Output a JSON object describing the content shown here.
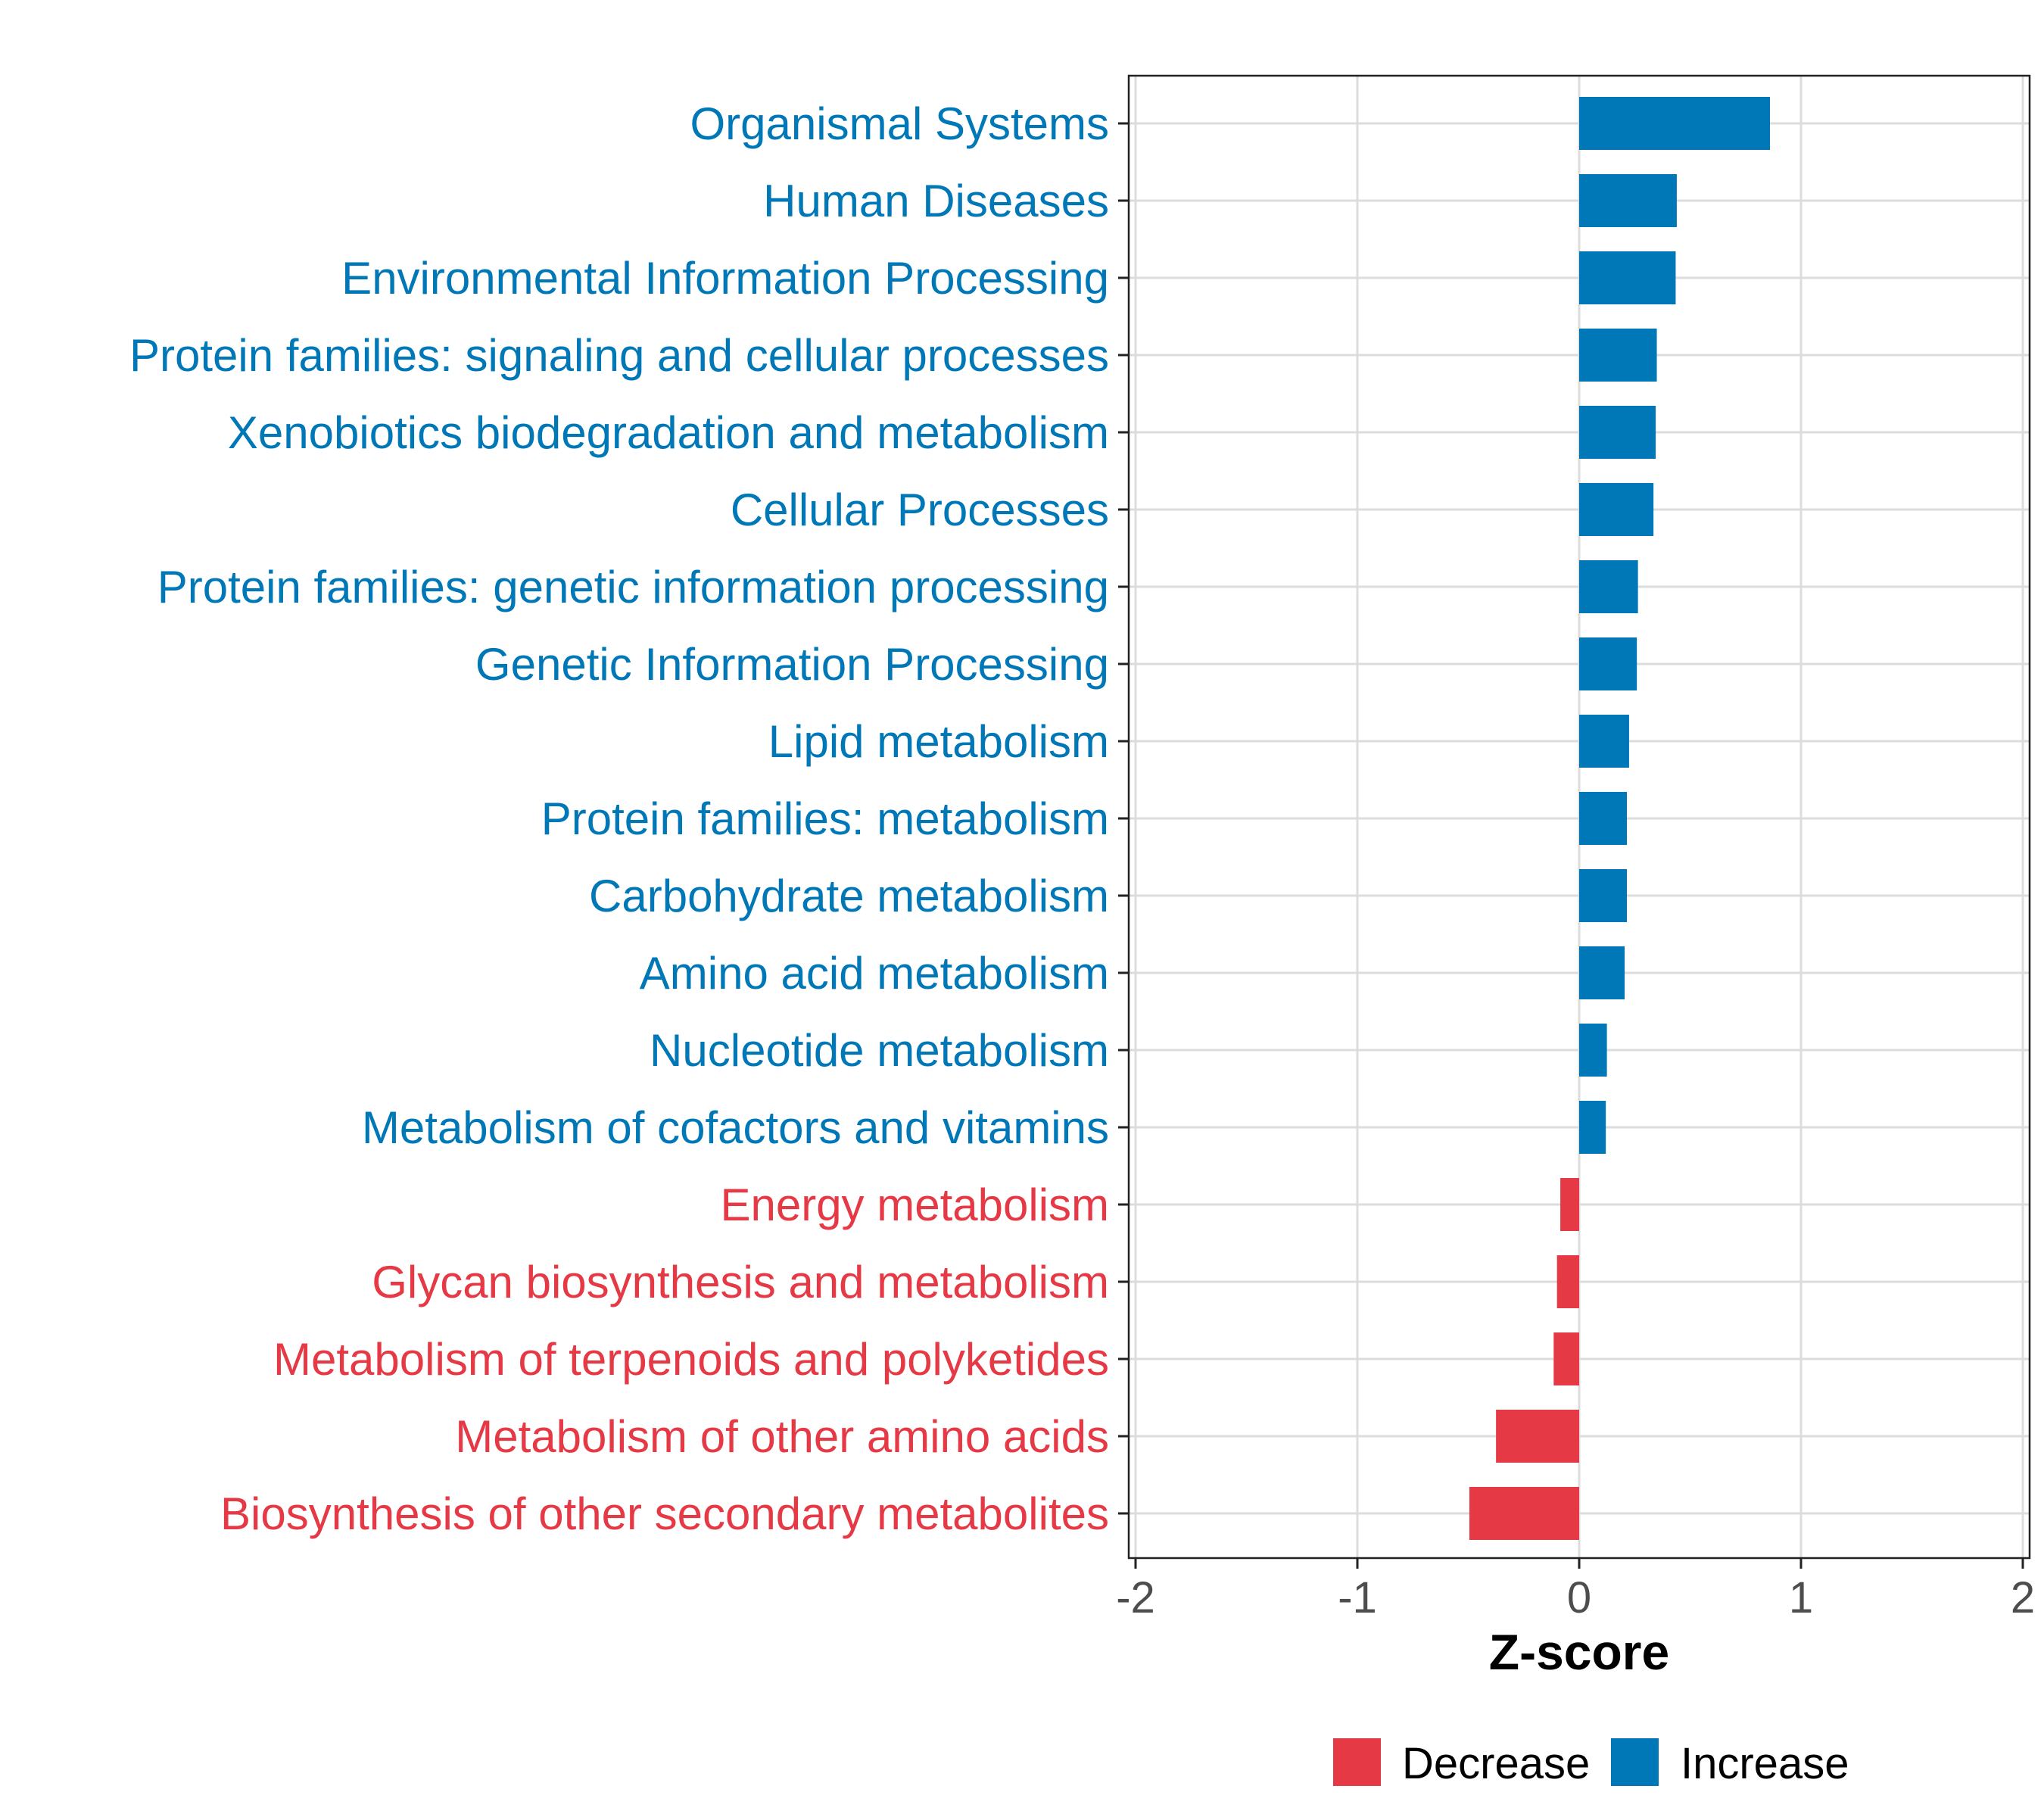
{
  "chart_data": {
    "type": "bar",
    "orientation": "horizontal",
    "title": "",
    "xlabel": "Z-score",
    "ylabel": "",
    "xlim": [
      -2,
      2
    ],
    "x_ticks": [
      -2,
      -1,
      0,
      1,
      2
    ],
    "x_tick_labels": [
      "-2",
      "-1",
      "0",
      "1",
      "2"
    ],
    "grid": true,
    "legend_position": "bottom",
    "categories": [
      "Organismal Systems",
      "Human Diseases",
      "Environmental Information Processing",
      "Protein families: signaling and cellular processes",
      "Xenobiotics biodegradation and metabolism",
      "Cellular Processes",
      "Protein families: genetic information processing",
      "Genetic Information Processing",
      "Lipid metabolism",
      "Protein families: metabolism",
      "Carbohydrate metabolism",
      "Amino acid metabolism",
      "Nucleotide metabolism",
      "Metabolism of cofactors and vitamins",
      "Energy metabolism",
      "Glycan biosynthesis and metabolism",
      "Metabolism of terpenoids and polyketides",
      "Metabolism of other amino acids",
      "Biosynthesis of other secondary metabolites"
    ],
    "values": [
      0.86,
      0.44,
      0.435,
      0.35,
      0.345,
      0.335,
      0.265,
      0.26,
      0.225,
      0.215,
      0.215,
      0.205,
      0.125,
      0.12,
      -0.085,
      -0.1,
      -0.115,
      -0.375,
      -0.495
    ],
    "groups": [
      "Increase",
      "Increase",
      "Increase",
      "Increase",
      "Increase",
      "Increase",
      "Increase",
      "Increase",
      "Increase",
      "Increase",
      "Increase",
      "Increase",
      "Increase",
      "Increase",
      "Decrease",
      "Decrease",
      "Decrease",
      "Decrease",
      "Decrease"
    ],
    "legend": [
      {
        "name": "Decrease",
        "color": "#E63946"
      },
      {
        "name": "Increase",
        "color": "#0077B6"
      }
    ]
  },
  "colors": {
    "Increase": "#0077B6",
    "Decrease": "#E63946",
    "grid": "#DCDCDC",
    "axis": "#222222",
    "tick_text": "#4D4D4D"
  }
}
